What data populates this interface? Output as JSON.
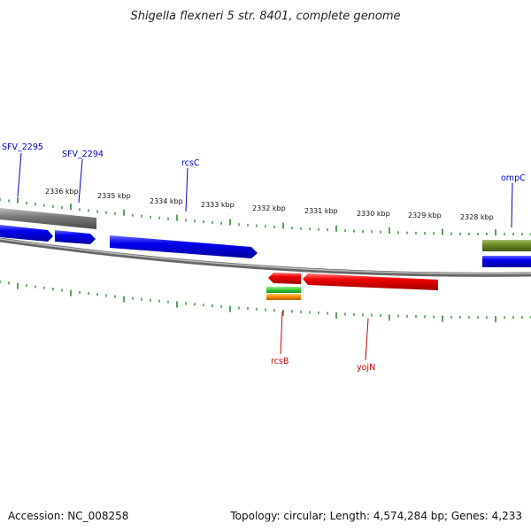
{
  "title": "Shigella flexneri 5 str. 8401, complete genome",
  "accession": "Accession: NC_008258",
  "summary": "Topology: circular; Length: 4,574,284 bp; Genes: 4,233",
  "ticks": [
    {
      "label": "2336 kbp"
    },
    {
      "label": "2335 kbp"
    },
    {
      "label": "2334 kbp"
    },
    {
      "label": "2333 kbp"
    },
    {
      "label": "2332 kbp"
    },
    {
      "label": "2331 kbp"
    },
    {
      "label": "2330 kbp"
    },
    {
      "label": "2329 kbp"
    },
    {
      "label": "2328 kbp"
    }
  ],
  "genes": [
    {
      "label": "SFV_2295",
      "color": "#0000cc"
    },
    {
      "label": "SFV_2294",
      "color": "#0000cc"
    },
    {
      "label": "rcsC",
      "color": "#0000cc"
    },
    {
      "label": "ompC",
      "color": "#0000cc"
    },
    {
      "label": "rcsB",
      "color": "#cc0000"
    },
    {
      "label": "yojN",
      "color": "#cc0000"
    }
  ],
  "colors": {
    "forward_gene": "#0000ee",
    "reverse_gene": "#ee0000",
    "pseudo_gene": "#777777",
    "backbone": "#888888",
    "tick": "#2e8b2e",
    "olive_feature": "#6b8e23",
    "green_feature": "#33cc33",
    "orange_feature": "#ff8800"
  }
}
